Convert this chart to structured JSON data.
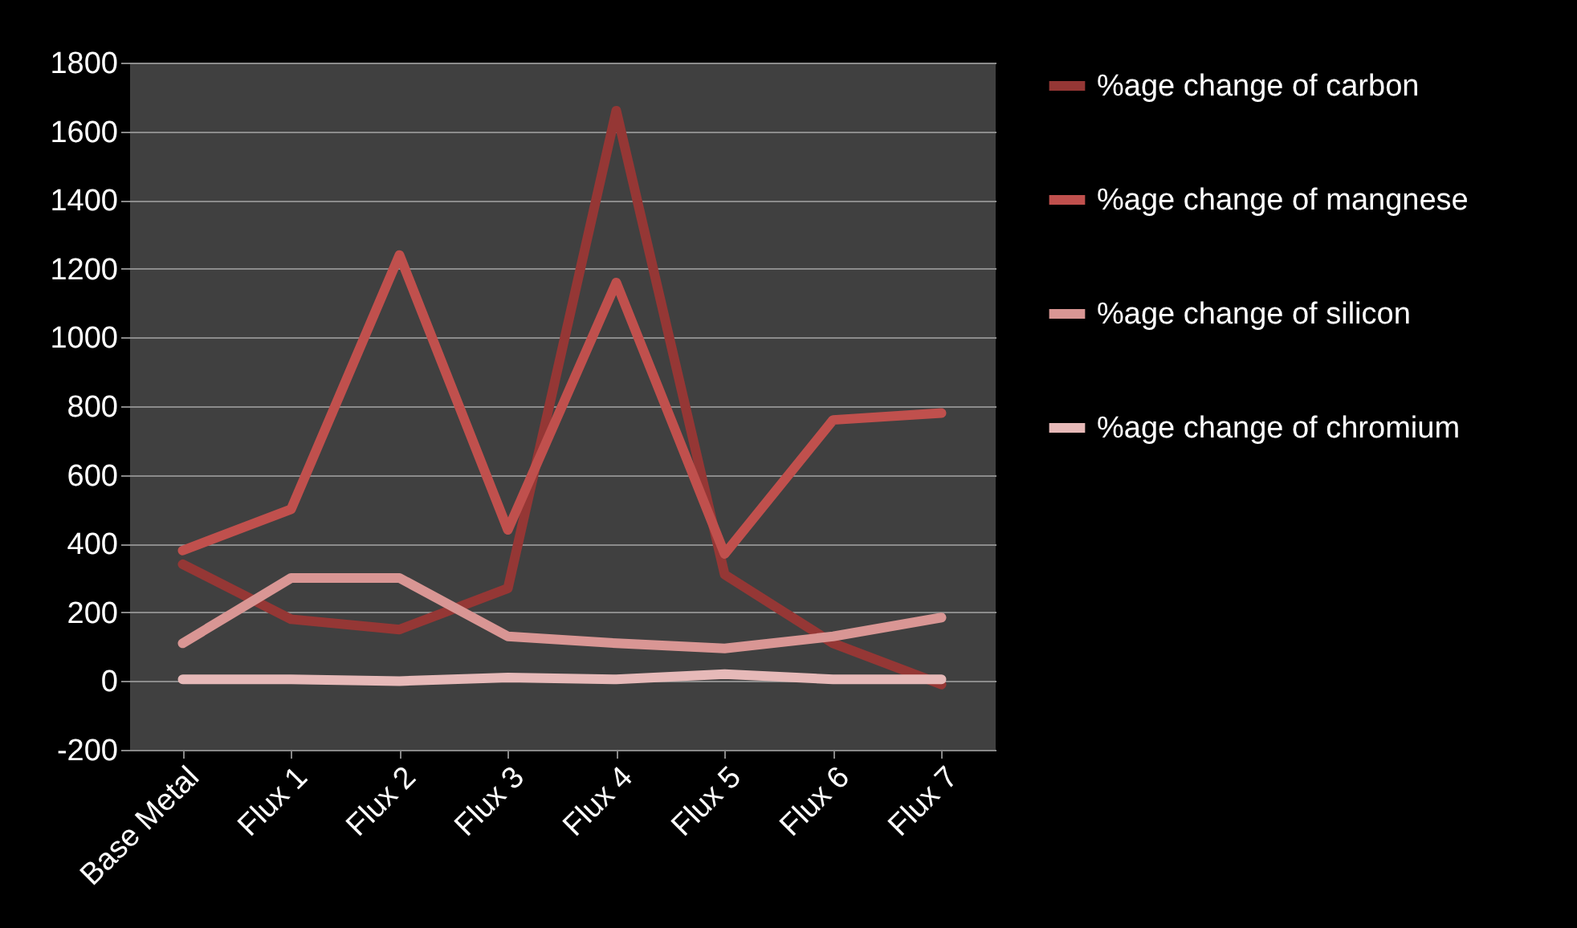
{
  "chart_data": {
    "type": "line",
    "categories": [
      "Base Metal",
      "Flux 1",
      "Flux 2",
      "Flux 3",
      "Flux 4",
      "Flux 5",
      "Flux 6",
      "Flux 7"
    ],
    "series": [
      {
        "name": "%age change of carbon",
        "color": "#953735",
        "values": [
          340,
          180,
          150,
          270,
          1660,
          310,
          110,
          -10
        ]
      },
      {
        "name": "%age change of mangnese",
        "color": "#c0504d",
        "values": [
          380,
          500,
          1240,
          440,
          1160,
          370,
          760,
          780
        ]
      },
      {
        "name": "%age change of silicon",
        "color": "#d99694",
        "values": [
          110,
          300,
          300,
          130,
          110,
          95,
          130,
          185
        ]
      },
      {
        "name": "%age change of chromium",
        "color": "#e6b9b8",
        "values": [
          5,
          5,
          0,
          10,
          5,
          20,
          5,
          5
        ]
      }
    ],
    "ylim": [
      -200,
      1800
    ],
    "yticks": [
      -200,
      0,
      200,
      400,
      600,
      800,
      1000,
      1200,
      1400,
      1600,
      1800
    ],
    "grid": "y",
    "legend": "right",
    "line_style": "solid",
    "marker": "none"
  }
}
